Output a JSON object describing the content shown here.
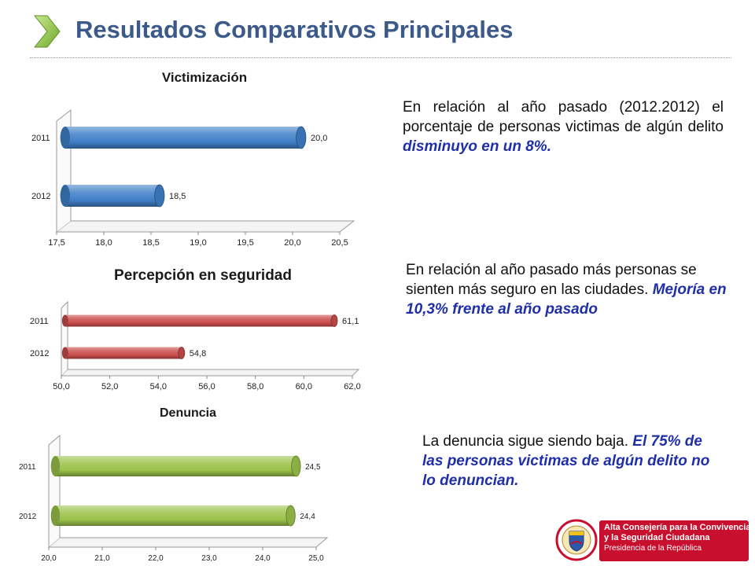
{
  "header": {
    "title": "Resultados Comparativos Principales",
    "chevron_color": "#8dc63f"
  },
  "chart_data": [
    {
      "type": "bar",
      "title": "Victimización",
      "categories": [
        "2011",
        "2012"
      ],
      "values": [
        20.0,
        18.5
      ],
      "value_labels": [
        "20,0",
        "18,5"
      ],
      "xlim": [
        17.5,
        20.5
      ],
      "ticks": [
        "17,5",
        "18,0",
        "18,5",
        "19,0",
        "19,5",
        "20,0",
        "20,5"
      ],
      "bar_color": "#3f7fc8"
    },
    {
      "type": "bar",
      "title": "Percepción en seguridad",
      "categories": [
        "2011",
        "2012"
      ],
      "values": [
        61.1,
        54.8
      ],
      "value_labels": [
        "61,1",
        "54,8"
      ],
      "xlim": [
        50,
        62
      ],
      "ticks": [
        "50,0",
        "52,0",
        "54,0",
        "56,0",
        "58,0",
        "60,0",
        "62,0"
      ],
      "bar_color": "#c94b4b"
    },
    {
      "type": "bar",
      "title": "Denuncia",
      "categories": [
        "2011",
        "2012"
      ],
      "values": [
        24.5,
        24.4
      ],
      "value_labels": [
        "24,5",
        "24,4"
      ],
      "xlim": [
        20,
        25
      ],
      "ticks": [
        "20,0",
        "21,0",
        "22,0",
        "23,0",
        "24,0",
        "25,0"
      ],
      "bar_color": "#9bc24a"
    }
  ],
  "panels": [
    {
      "text_a": "En relación al año pasado (2012.2012) el porcentaje de personas victimas  de algún delito ",
      "text_b": "disminuyo en un 8%."
    },
    {
      "text_a": "En relación al año pasado más personas se sienten más seguro en las ciudades. ",
      "text_b": "Mejoría en 10,3% frente al año pasado"
    },
    {
      "text_a": "La denuncia sigue siendo baja. ",
      "text_b": "El 75% de las personas victimas de algún delito no lo denuncian."
    }
  ],
  "logo": {
    "seal_text": "REPÚBLICA DE COLOMBIA",
    "line1": "Alta Consejería para la Convivencia",
    "line2": "y la Seguridad Ciudadana",
    "line3": "Presidencia de la República"
  }
}
